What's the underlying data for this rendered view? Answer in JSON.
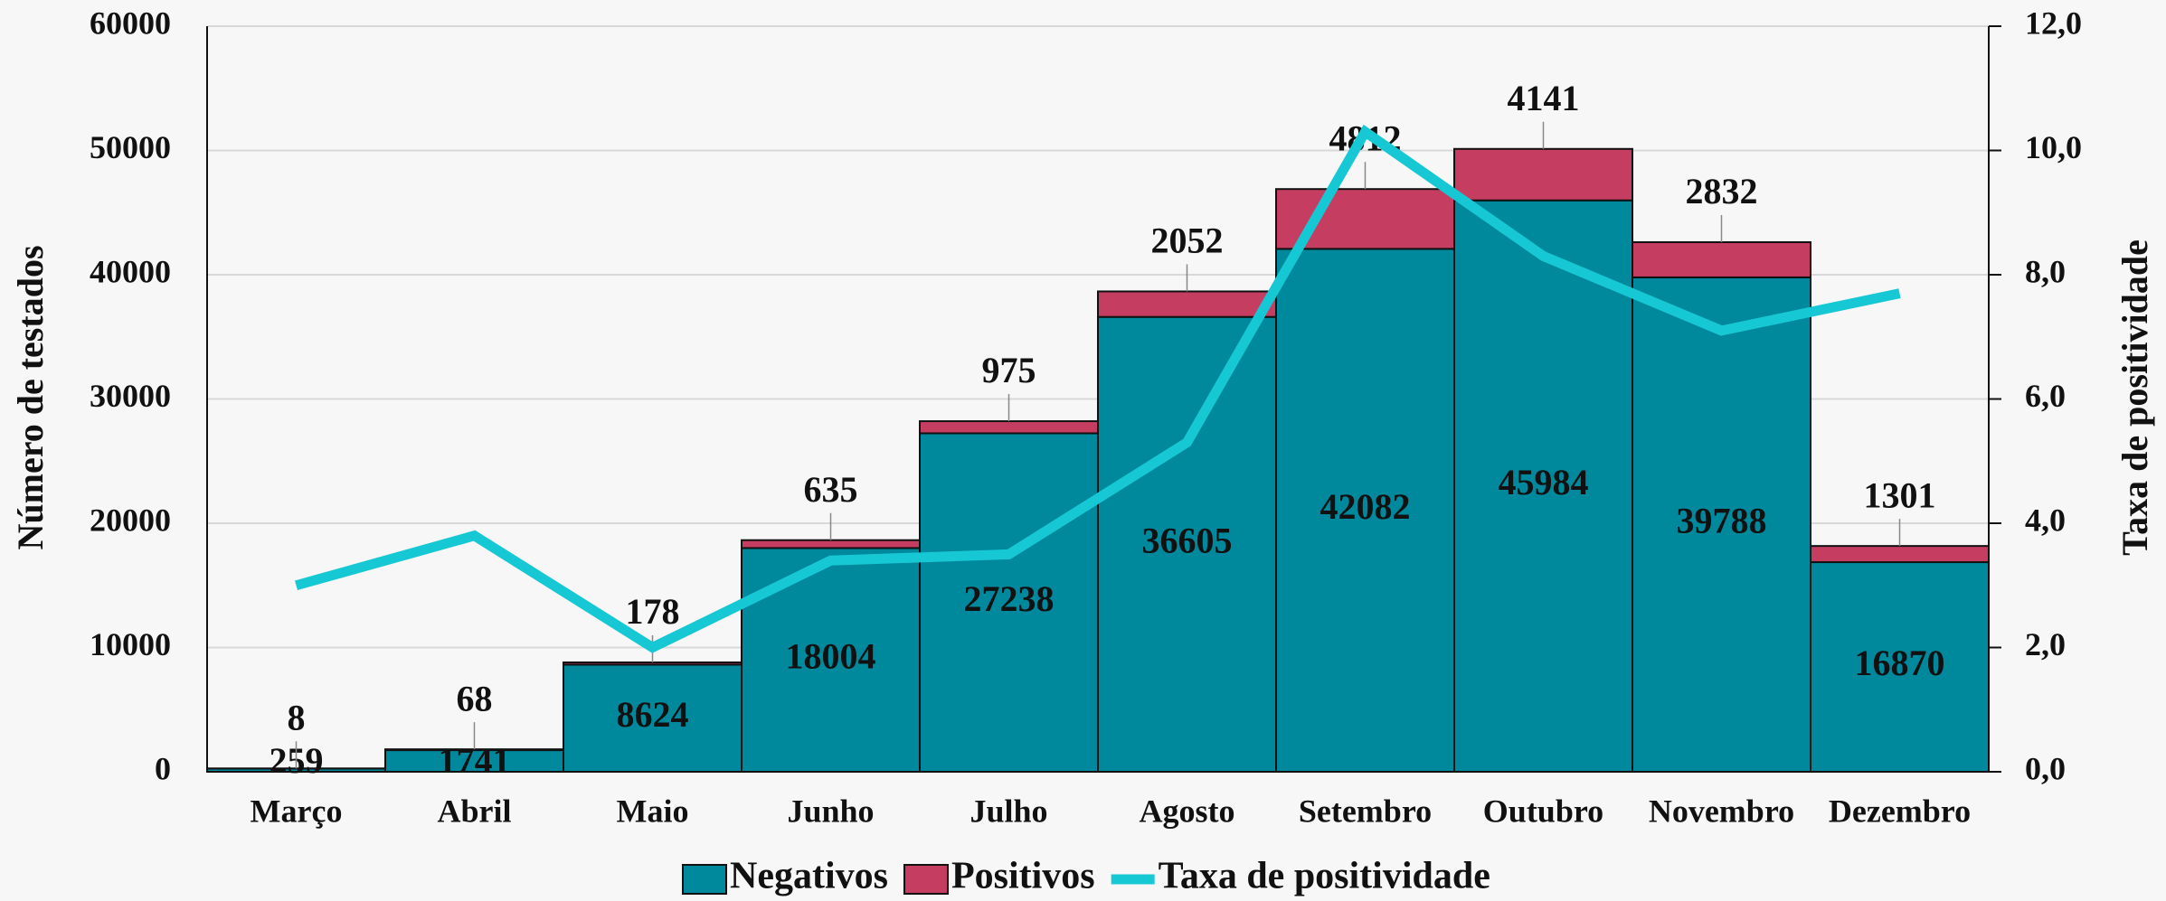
{
  "chart_data": {
    "type": "bar",
    "categories": [
      "Março",
      "Abril",
      "Maio",
      "Junho",
      "Julho",
      "Agosto",
      "Setembro",
      "Outubro",
      "Novembro",
      "Dezembro"
    ],
    "series": [
      {
        "name": "Negativos",
        "color": "#00889c",
        "values": [
          259,
          1741,
          8624,
          18004,
          27238,
          36605,
          42082,
          45984,
          39788,
          16870
        ]
      },
      {
        "name": "Positivos",
        "color": "#c63d62",
        "values": [
          8,
          68,
          178,
          635,
          975,
          2052,
          4812,
          4141,
          2832,
          1301
        ]
      },
      {
        "name": "Taxa de positividade",
        "color": "#16c8d4",
        "type": "line",
        "axis": "y2",
        "values": [
          3.0,
          3.8,
          2.0,
          3.4,
          3.5,
          5.3,
          10.3,
          8.3,
          7.1,
          7.7
        ]
      }
    ],
    "y_label": "Número de testados",
    "y2_label": "Taxa de positividade",
    "ylim": [
      0,
      60000
    ],
    "yticks": [
      0,
      10000,
      20000,
      30000,
      40000,
      50000,
      60000
    ],
    "y2lim": [
      0,
      12
    ],
    "y2ticks": [
      {
        "value": 0,
        "label": "0,0"
      },
      {
        "value": 2,
        "label": "2,0"
      },
      {
        "value": 4,
        "label": "4,0"
      },
      {
        "value": 6,
        "label": "6,0"
      },
      {
        "value": 8,
        "label": "8,0"
      },
      {
        "value": 10,
        "label": "10,0"
      },
      {
        "value": 12,
        "label": "12,0"
      }
    ],
    "grid": true,
    "legend": "bottom"
  }
}
